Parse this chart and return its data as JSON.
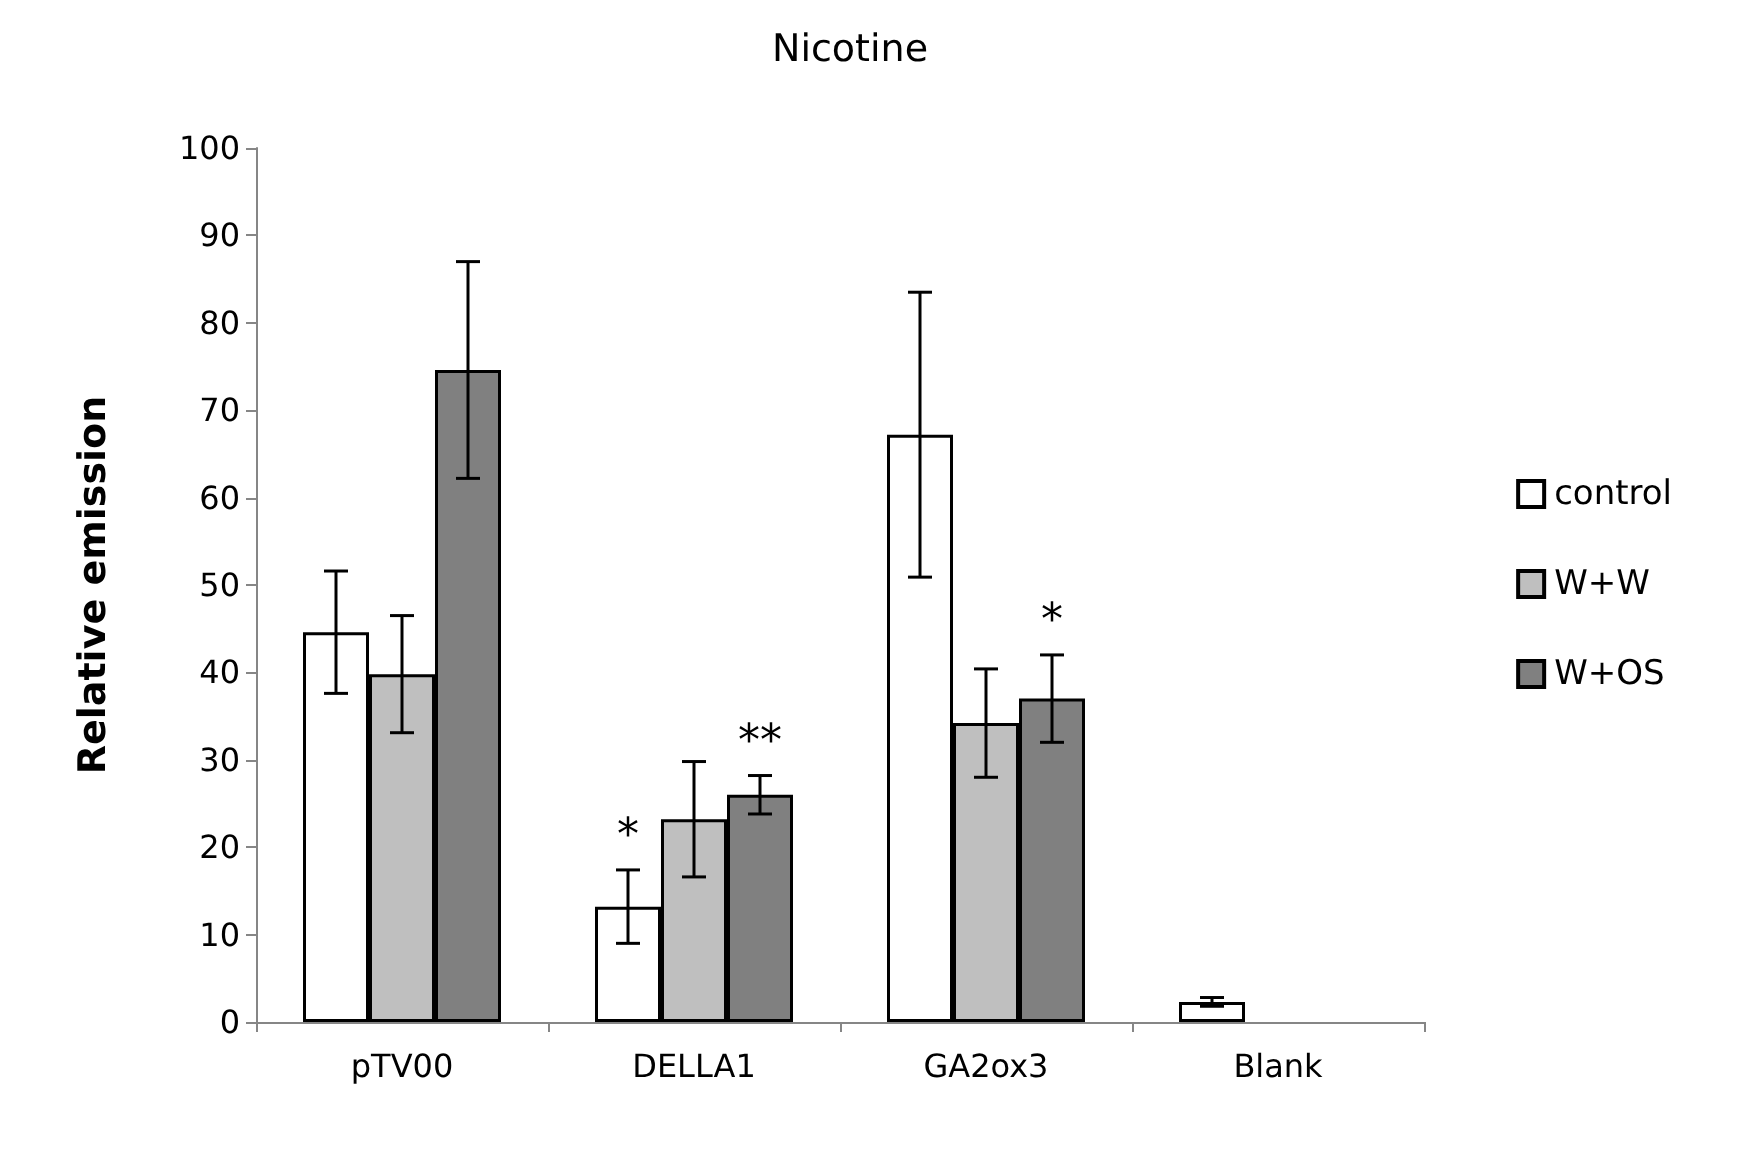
{
  "chart_data": {
    "type": "bar",
    "title": "Nicotine",
    "ylabel": "Relative emission",
    "categories": [
      "pTV00",
      "DELLA1",
      "GA2ox3",
      "Blank"
    ],
    "series": [
      {
        "name": "control",
        "color": "#ffffff",
        "values": [
          44.6,
          13.2,
          67.2,
          2.3
        ],
        "errors": [
          7.0,
          4.2,
          16.3,
          0.5
        ]
      },
      {
        "name": "W+W",
        "color": "#bfbfbf",
        "values": [
          39.8,
          23.2,
          34.2,
          null
        ],
        "errors": [
          6.7,
          6.6,
          6.2,
          null
        ]
      },
      {
        "name": "W+OS",
        "color": "#808080",
        "values": [
          74.6,
          26.0,
          37.0,
          null
        ],
        "errors": [
          12.4,
          2.2,
          5.0,
          null
        ]
      }
    ],
    "ylim": [
      0,
      100
    ],
    "yticks": [
      0,
      10,
      20,
      30,
      40,
      50,
      60,
      70,
      80,
      90,
      100
    ],
    "grid": false,
    "legend": "right",
    "annotations": [
      "*",
      "**",
      "*"
    ]
  }
}
